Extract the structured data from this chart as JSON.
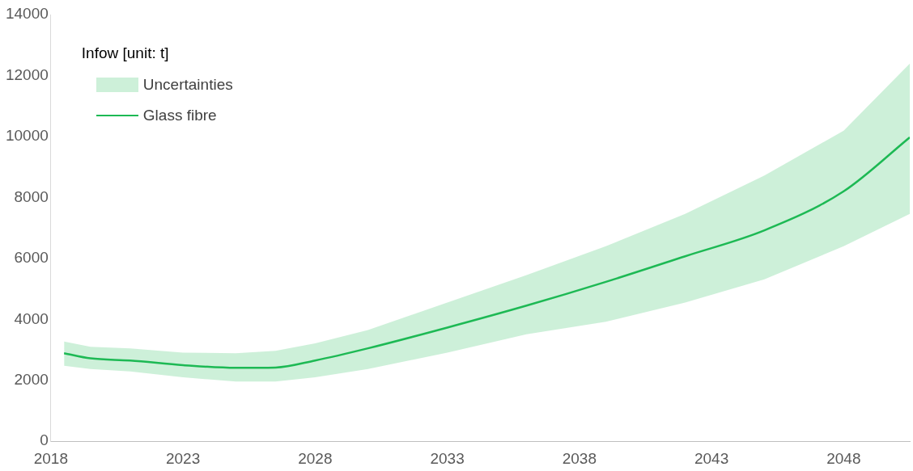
{
  "chart_data": {
    "type": "line",
    "legend_title": "Infow [unit: t]",
    "annotations": [
      "Uncertainties"
    ],
    "xlim": [
      2018,
      2050.5
    ],
    "xticks": [
      2018,
      2023,
      2028,
      2033,
      2038,
      2043,
      2048
    ],
    "ylim": [
      0,
      14000
    ],
    "yticks": [
      0,
      2000,
      4000,
      6000,
      8000,
      10000,
      12000,
      14000
    ],
    "grid": false,
    "legend": "top left",
    "marker": "none",
    "line_style": "solid",
    "x": [
      2018.5,
      2019.5,
      2021,
      2023,
      2025,
      2026.5,
      2028,
      2030,
      2033,
      2036,
      2039,
      2042,
      2045,
      2048,
      2050.5
    ],
    "series": [
      {
        "name": "Glass fibre",
        "color": "#1db954",
        "values": [
          2890,
          2720,
          2650,
          2500,
          2410,
          2420,
          2650,
          3050,
          3730,
          4450,
          5230,
          6070,
          6920,
          8200,
          9970
        ],
        "lower": [
          2480,
          2370,
          2290,
          2100,
          1960,
          1960,
          2100,
          2370,
          2910,
          3510,
          3920,
          4550,
          5310,
          6400,
          7460
        ],
        "upper": [
          3270,
          3100,
          3050,
          2910,
          2890,
          2970,
          3210,
          3650,
          4550,
          5450,
          6400,
          7460,
          8720,
          10190,
          12390
        ]
      }
    ]
  }
}
